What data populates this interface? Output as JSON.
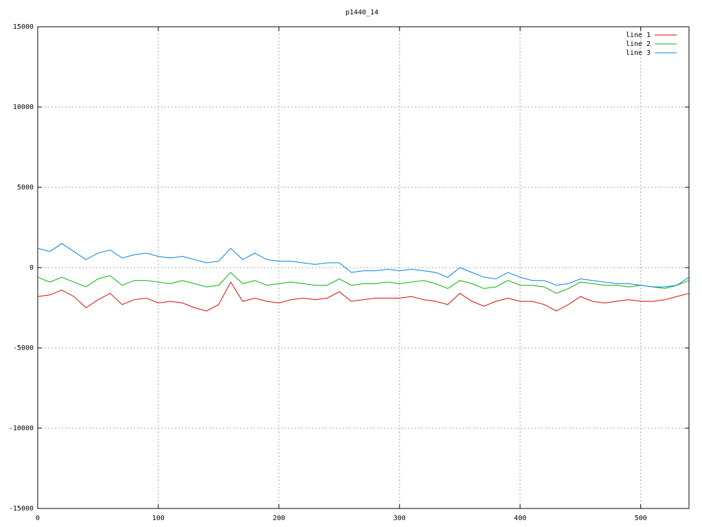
{
  "chart_data": {
    "type": "line",
    "title": "p1440_14",
    "x": [
      0,
      10,
      20,
      30,
      40,
      50,
      60,
      70,
      80,
      90,
      100,
      110,
      120,
      130,
      140,
      150,
      160,
      170,
      180,
      190,
      200,
      210,
      220,
      230,
      240,
      250,
      260,
      270,
      280,
      290,
      300,
      310,
      320,
      330,
      340,
      350,
      360,
      370,
      380,
      390,
      400,
      410,
      420,
      430,
      440,
      450,
      460,
      470,
      480,
      490,
      500,
      510,
      520,
      530,
      540
    ],
    "series": [
      {
        "name": "line 1",
        "color": "#e00000",
        "values": [
          -1800,
          -1700,
          -1400,
          -1800,
          -2500,
          -2000,
          -1600,
          -2300,
          -2000,
          -1900,
          -2200,
          -2100,
          -2200,
          -2500,
          -2700,
          -2300,
          -900,
          -2100,
          -1900,
          -2100,
          -2200,
          -2000,
          -1900,
          -2000,
          -1900,
          -1500,
          -2100,
          -2000,
          -1900,
          -1900,
          -1900,
          -1800,
          -2000,
          -2100,
          -2300,
          -1600,
          -2100,
          -2400,
          -2100,
          -1900,
          -2100,
          -2100,
          -2300,
          -2700,
          -2300,
          -1800,
          -2100,
          -2200,
          -2100,
          -2000,
          -2100,
          -2100,
          -2000,
          -1800,
          -1600
        ]
      },
      {
        "name": "line 2",
        "color": "#00b000",
        "values": [
          -600,
          -900,
          -600,
          -900,
          -1200,
          -700,
          -500,
          -1100,
          -800,
          -800,
          -900,
          -1000,
          -800,
          -1000,
          -1200,
          -1100,
          -300,
          -1000,
          -800,
          -1100,
          -1000,
          -900,
          -1000,
          -1100,
          -1100,
          -700,
          -1100,
          -1000,
          -1000,
          -900,
          -1000,
          -900,
          -800,
          -1000,
          -1300,
          -800,
          -1000,
          -1300,
          -1200,
          -800,
          -1100,
          -1100,
          -1200,
          -1600,
          -1300,
          -900,
          -1000,
          -1100,
          -1100,
          -1200,
          -1100,
          -1200,
          -1300,
          -1100,
          -800
        ]
      },
      {
        "name": "line 3",
        "color": "#0080e0",
        "values": [
          1200,
          1000,
          1500,
          1000,
          500,
          900,
          1100,
          600,
          800,
          900,
          700,
          600,
          700,
          500,
          300,
          400,
          1200,
          500,
          900,
          500,
          400,
          400,
          300,
          200,
          300,
          300,
          -300,
          -200,
          -200,
          -100,
          -200,
          -100,
          -200,
          -300,
          -600,
          0,
          -300,
          -600,
          -700,
          -300,
          -600,
          -800,
          -800,
          -1100,
          -1000,
          -700,
          -800,
          -900,
          -1000,
          -1000,
          -1100,
          -1200,
          -1200,
          -1100,
          -600
        ]
      }
    ],
    "xlim": [
      0,
      540
    ],
    "ylim": [
      -15000,
      15000
    ],
    "xticks": [
      0,
      100,
      200,
      300,
      400,
      500
    ],
    "yticks": [
      -15000,
      -10000,
      -5000,
      0,
      5000,
      10000,
      15000
    ],
    "grid": true,
    "legend": "top-right"
  }
}
